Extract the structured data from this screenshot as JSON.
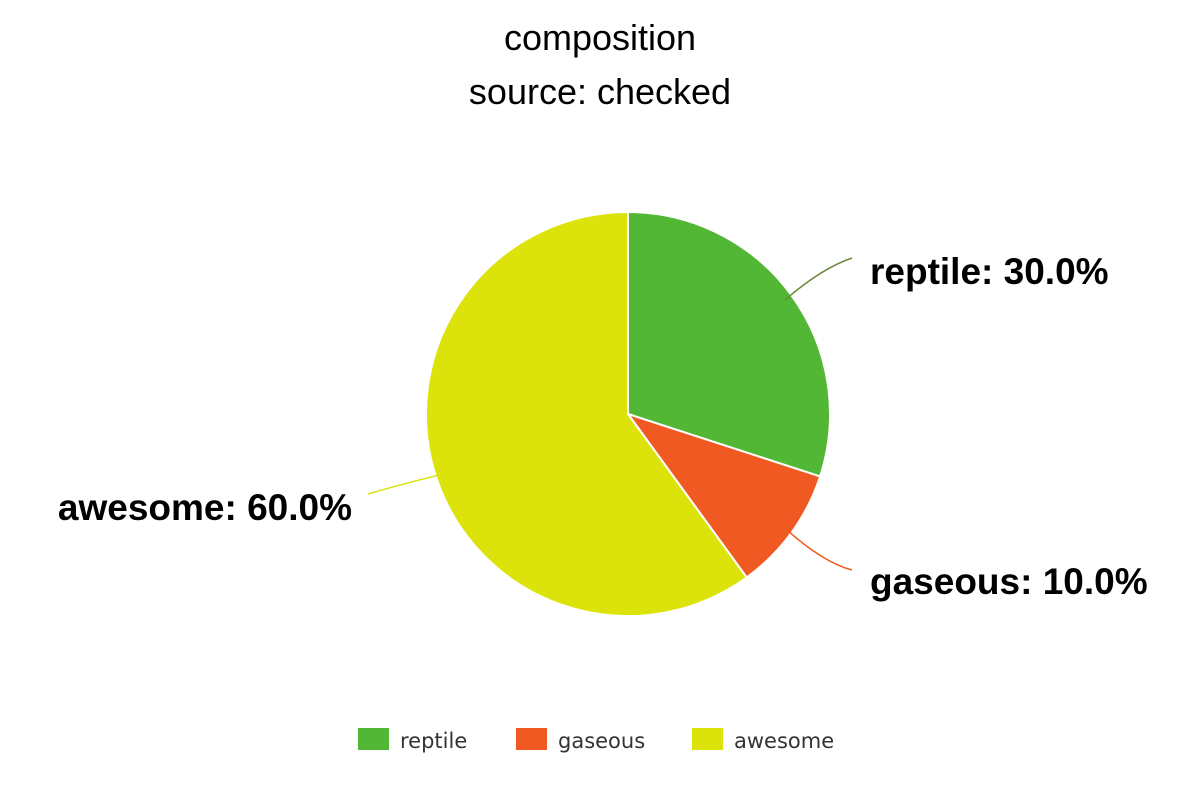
{
  "chart_data": {
    "type": "pie",
    "title": "composition",
    "subtitle": "source: checked",
    "legend_position": "bottom",
    "slices": [
      {
        "name": "reptile",
        "value": 30.0,
        "label": "reptile: 30.0%",
        "color": "#52b734"
      },
      {
        "name": "gaseous",
        "value": 10.0,
        "label": "gaseous: 10.0%",
        "color": "#f05a22"
      },
      {
        "name": "awesome",
        "value": 60.0,
        "label": "awesome: 60.0%",
        "color": "#dbe30a"
      }
    ]
  }
}
